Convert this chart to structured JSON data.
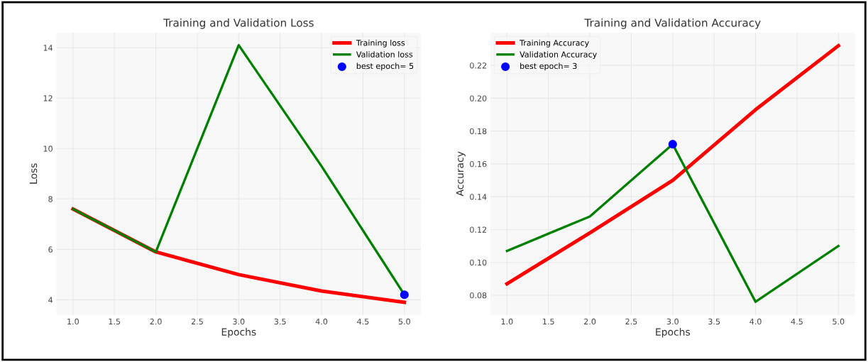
{
  "chart_data": [
    {
      "type": "line",
      "title": "Training and Validation Loss",
      "xlabel": "Epochs",
      "ylabel": "Loss",
      "x": [
        1,
        2,
        3,
        4,
        5
      ],
      "series": [
        {
          "name": "Training loss",
          "color": "#ff0000",
          "values": [
            7.6,
            5.9,
            5.0,
            4.35,
            3.9
          ]
        },
        {
          "name": "Validation loss",
          "color": "#008000",
          "values": [
            7.6,
            5.9,
            14.1,
            9.3,
            4.2
          ]
        },
        {
          "name": "best epoch= 5",
          "type": "scatter",
          "color": "#0000ff",
          "x": [
            5
          ],
          "values": [
            4.2
          ]
        }
      ],
      "xlim": [
        0.8,
        5.2
      ],
      "xticks": [
        {
          "value": 1,
          "label": "1.0"
        },
        {
          "value": 1.5,
          "label": "1.5"
        },
        {
          "value": 2,
          "label": "2.0"
        },
        {
          "value": 2.5,
          "label": "2.5"
        },
        {
          "value": 3,
          "label": "3.0"
        },
        {
          "value": 3.5,
          "label": "3.5"
        },
        {
          "value": 4,
          "label": "4.0"
        },
        {
          "value": 4.5,
          "label": "4.5"
        },
        {
          "value": 5,
          "label": "5.0"
        }
      ],
      "ylim": [
        3.4,
        14.6
      ],
      "yticks": [
        4,
        6,
        8,
        10,
        12,
        14
      ],
      "grid": true,
      "legend": "top right"
    },
    {
      "type": "line",
      "title": "Training and Validation Accuracy",
      "xlabel": "Epochs",
      "ylabel": "Accuracy",
      "x": [
        1,
        2,
        3,
        4,
        5
      ],
      "series": [
        {
          "name": "Training Accuracy",
          "color": "#ff0000",
          "values": [
            0.087,
            0.118,
            0.15,
            0.193,
            0.232
          ]
        },
        {
          "name": "Validation Accuracy",
          "color": "#008000",
          "values": [
            0.107,
            0.128,
            0.172,
            0.076,
            0.11
          ]
        },
        {
          "name": "best epoch= 3",
          "type": "scatter",
          "color": "#0000ff",
          "x": [
            3
          ],
          "values": [
            0.172
          ]
        }
      ],
      "xlim": [
        0.8,
        5.2
      ],
      "xticks": [
        {
          "value": 1,
          "label": "1.0"
        },
        {
          "value": 1.5,
          "label": "1.5"
        },
        {
          "value": 2,
          "label": "2.0"
        },
        {
          "value": 2.5,
          "label": "2.5"
        },
        {
          "value": 3,
          "label": "3.0"
        },
        {
          "value": 3.5,
          "label": "3.5"
        },
        {
          "value": 4,
          "label": "4.0"
        },
        {
          "value": 4.5,
          "label": "4.5"
        },
        {
          "value": 5,
          "label": "5.0"
        }
      ],
      "ylim": [
        0.068,
        0.24
      ],
      "yticks": [
        {
          "value": 0.08,
          "label": "0.08"
        },
        {
          "value": 0.1,
          "label": "0.10"
        },
        {
          "value": 0.12,
          "label": "0.12"
        },
        {
          "value": 0.14,
          "label": "0.14"
        },
        {
          "value": 0.16,
          "label": "0.16"
        },
        {
          "value": 0.18,
          "label": "0.18"
        },
        {
          "value": 0.2,
          "label": "0.20"
        },
        {
          "value": 0.22,
          "label": "0.22"
        }
      ],
      "grid": true,
      "legend": "top left"
    }
  ]
}
